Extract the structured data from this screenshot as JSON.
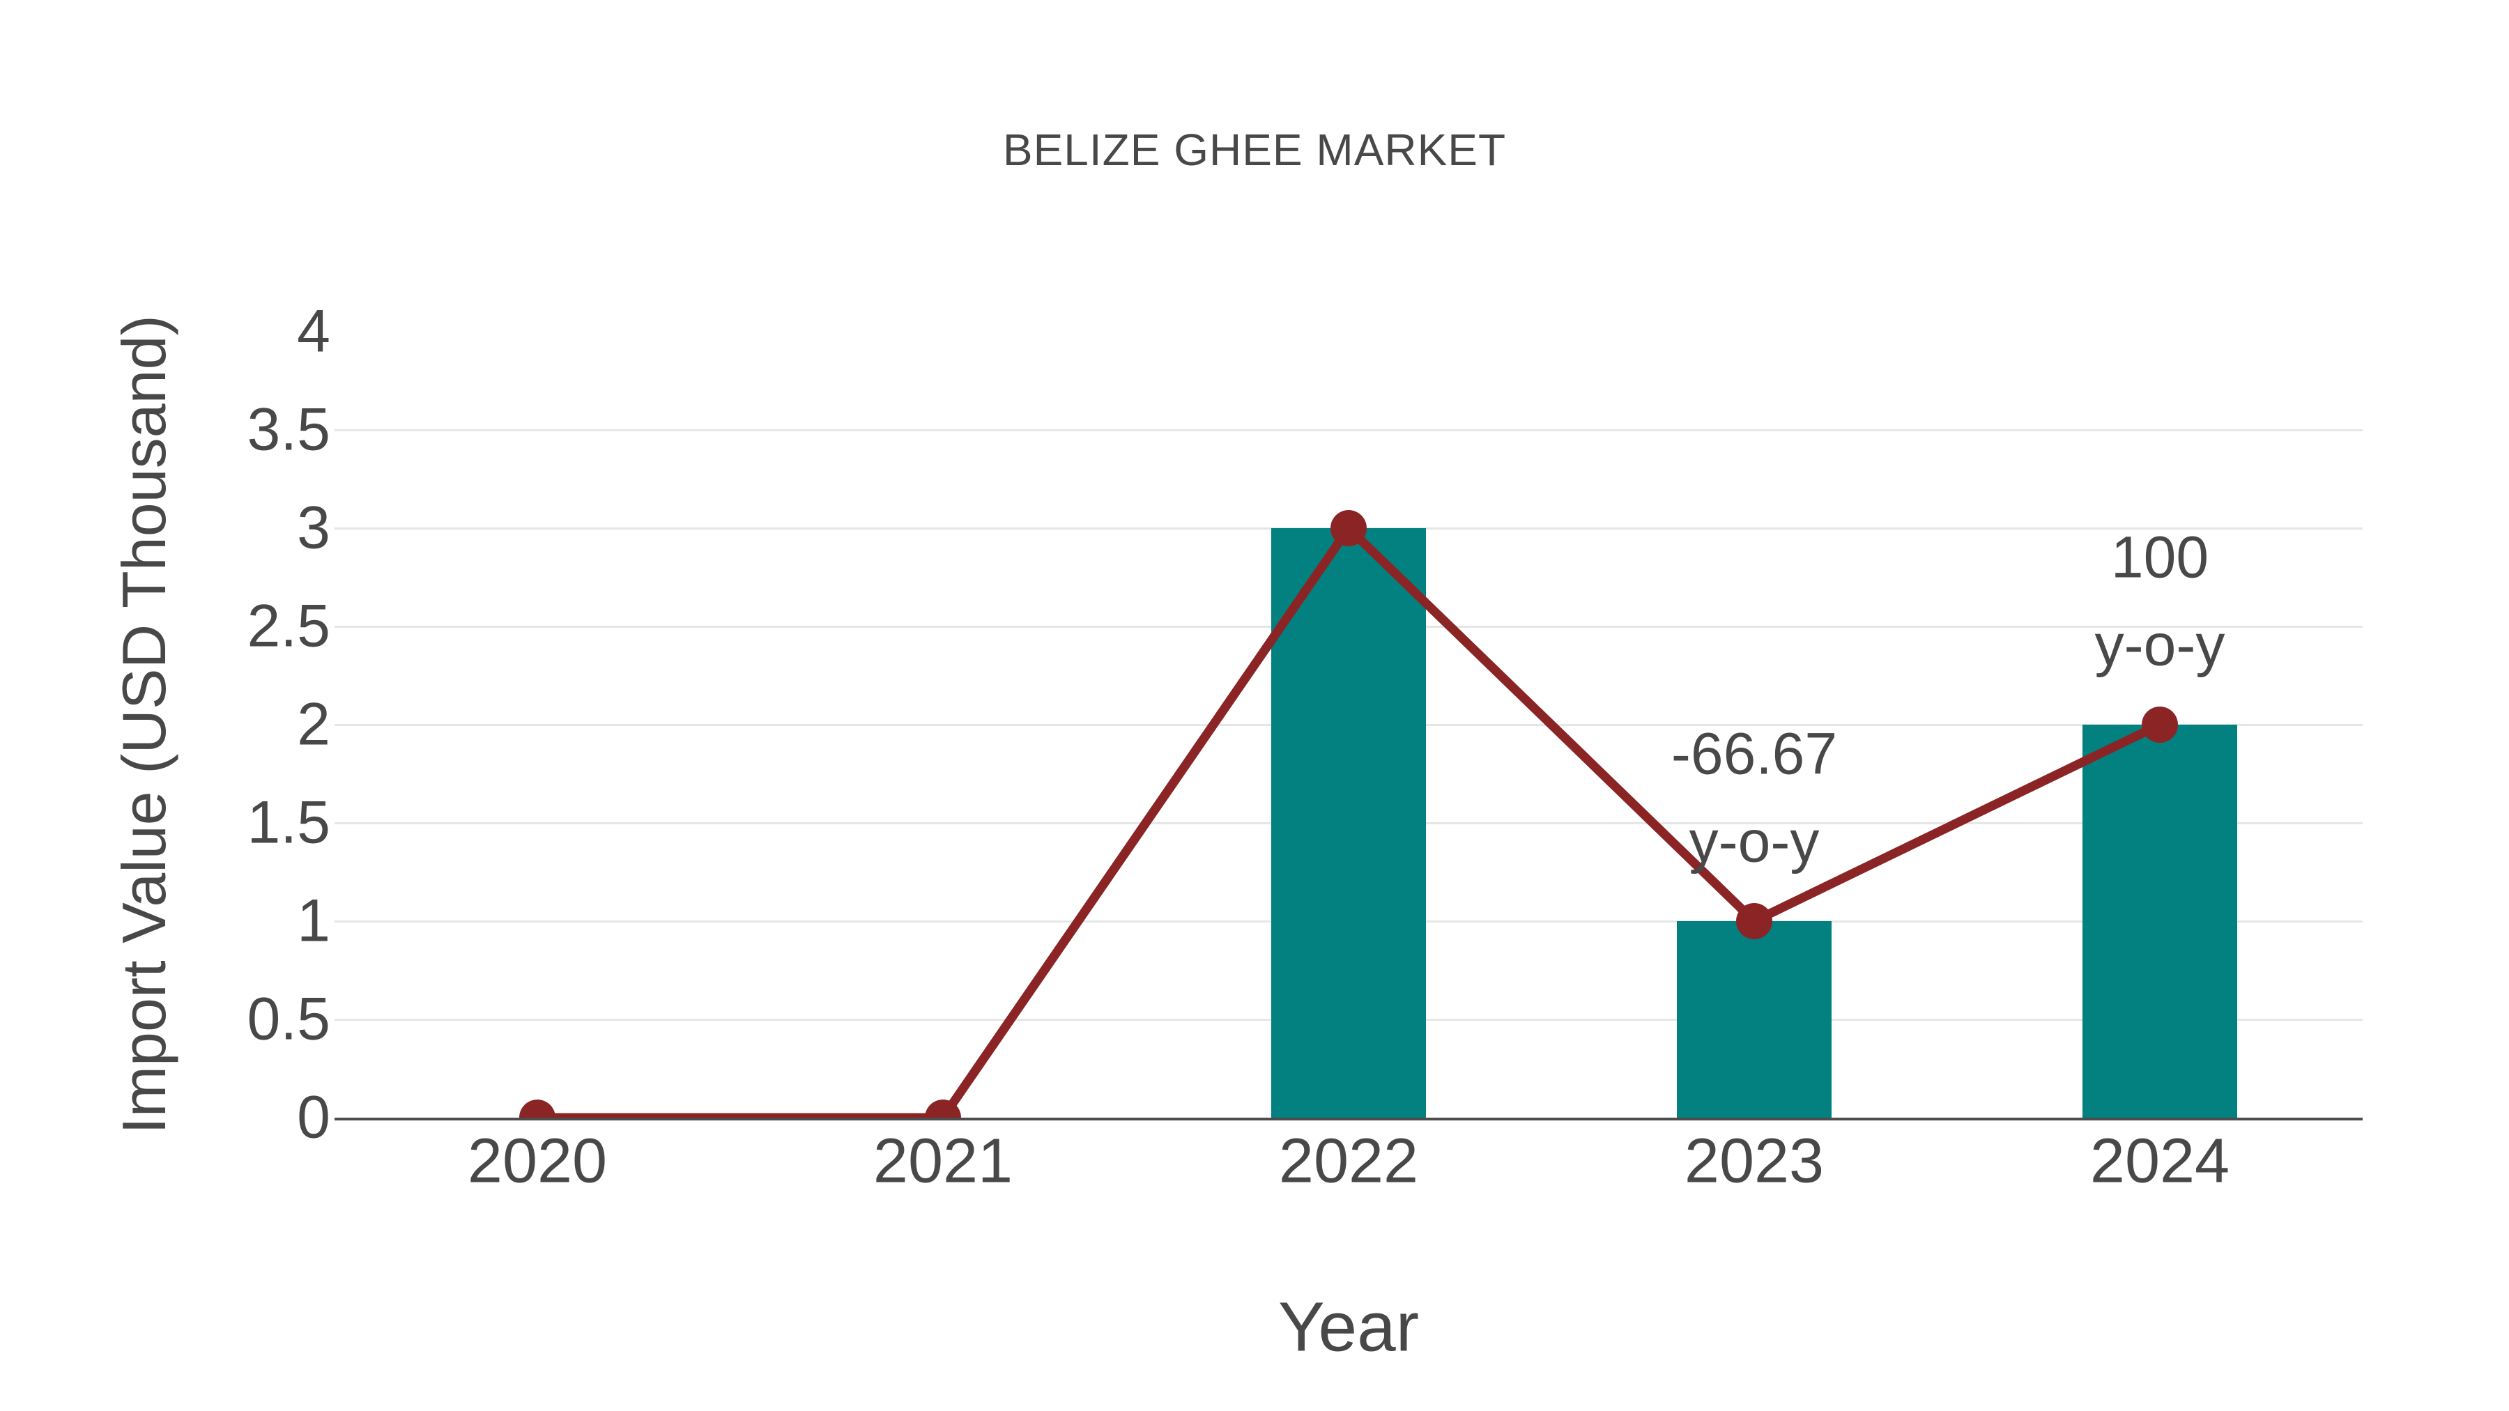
{
  "title": "BELIZE GHEE MARKET",
  "chart_data": {
    "type": "bar+line",
    "title": "BELIZE GHEE MARKET",
    "xlabel": "Year",
    "ylabel": "Import Value (USD Thousand)",
    "categories": [
      "2020",
      "2021",
      "2022",
      "2023",
      "2024"
    ],
    "series": [
      {
        "name": "import-value-bars",
        "type": "bar",
        "values": [
          0,
          0,
          3,
          1,
          2
        ]
      },
      {
        "name": "import-value-line",
        "type": "line",
        "values": [
          0,
          0,
          3,
          1,
          2
        ]
      }
    ],
    "ylim": [
      0,
      4
    ],
    "ytick_values": [
      0,
      0.5,
      1,
      1.5,
      2,
      2.5,
      3,
      3.5,
      4
    ],
    "ytick_labels": [
      "0",
      "0.5",
      "1",
      "1.5",
      "2",
      "2.5",
      "3",
      "3.5",
      "4"
    ],
    "gridline_values": [
      0.5,
      1,
      1.5,
      2,
      2.5,
      3,
      3.5
    ],
    "grid": "horizontal",
    "legend": "none",
    "annotations": [
      {
        "category": "2023",
        "value": 1,
        "lines": [
          "-66.67",
          "y-o-y"
        ]
      },
      {
        "category": "2024",
        "value": 2,
        "lines": [
          "100",
          "y-o-y"
        ]
      }
    ],
    "colors": {
      "bar": "#038080",
      "line": "#8B2525",
      "marker": "#8B2525",
      "text": "#484848",
      "grid": "#e6e6e6",
      "axis": "#4d4d4d",
      "background": "#ffffff"
    }
  }
}
